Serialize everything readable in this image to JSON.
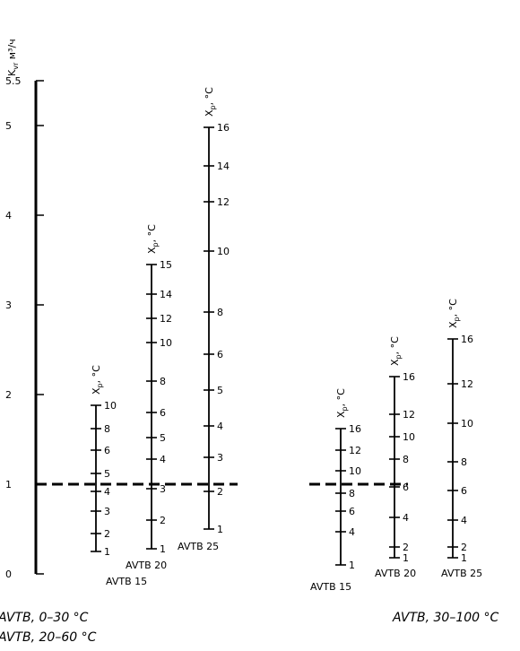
{
  "chart_data": {
    "type": "nomogram",
    "y_axis": {
      "label": "K",
      "label_sub": "vr",
      "label_unit": " м³/ч",
      "range": [
        0,
        5.5
      ],
      "ticks": [
        {
          "value": 0,
          "label": "0"
        },
        {
          "value": 1,
          "label": "1"
        },
        {
          "value": 2,
          "label": "2"
        },
        {
          "value": 3,
          "label": "3"
        },
        {
          "value": 4,
          "label": "4"
        },
        {
          "value": 5,
          "label": "5"
        },
        {
          "value": 5.5,
          "label": "5.5"
        }
      ]
    },
    "reference_line": {
      "value": 1,
      "style": "dashed"
    },
    "scale_header": {
      "main": "X",
      "sub": "p",
      "unit": ", °C"
    },
    "groups": [
      {
        "caption": [
          "AVTB, 0–30 °C",
          "AVTB, 20–60 °C"
        ],
        "scales": [
          {
            "name": "AVTB 15",
            "bottom": 0.25,
            "top": 1.88,
            "ticks": [
              {
                "k": 0.25,
                "label": "1"
              },
              {
                "k": 0.45,
                "label": "2"
              },
              {
                "k": 0.7,
                "label": "3"
              },
              {
                "k": 0.92,
                "label": "4"
              },
              {
                "k": 1.12,
                "label": "5"
              },
              {
                "k": 1.38,
                "label": "6"
              },
              {
                "k": 1.62,
                "label": "8"
              },
              {
                "k": 1.88,
                "label": "10"
              }
            ]
          },
          {
            "name": "AVTB 20",
            "bottom": 0.28,
            "top": 3.45,
            "ticks": [
              {
                "k": 0.28,
                "label": "1"
              },
              {
                "k": 0.6,
                "label": "2"
              },
              {
                "k": 0.95,
                "label": "3"
              },
              {
                "k": 1.28,
                "label": "4"
              },
              {
                "k": 1.52,
                "label": "5"
              },
              {
                "k": 1.8,
                "label": "6"
              },
              {
                "k": 2.15,
                "label": "8"
              },
              {
                "k": 2.58,
                "label": "10"
              },
              {
                "k": 2.85,
                "label": "12"
              },
              {
                "k": 3.12,
                "label": "14"
              },
              {
                "k": 3.45,
                "label": "15"
              }
            ]
          },
          {
            "name": "AVTB 25",
            "bottom": 0.5,
            "top": 4.98,
            "ticks": [
              {
                "k": 0.5,
                "label": "1"
              },
              {
                "k": 0.92,
                "label": "2"
              },
              {
                "k": 1.3,
                "label": "3"
              },
              {
                "k": 1.65,
                "label": "4"
              },
              {
                "k": 2.05,
                "label": "5"
              },
              {
                "k": 2.45,
                "label": "6"
              },
              {
                "k": 2.92,
                "label": "8"
              },
              {
                "k": 3.6,
                "label": "10"
              },
              {
                "k": 4.15,
                "label": "12"
              },
              {
                "k": 4.55,
                "label": "14"
              },
              {
                "k": 4.98,
                "label": "16"
              }
            ]
          }
        ]
      },
      {
        "caption": [
          "AVTB, 30–100 °C"
        ],
        "scales": [
          {
            "name": "AVTB 15",
            "bottom": 0.1,
            "top": 1.62,
            "ticks": [
              {
                "k": 0.1,
                "label": "1"
              },
              {
                "k": 0.47,
                "label": "4"
              },
              {
                "k": 0.7,
                "label": "6"
              },
              {
                "k": 0.9,
                "label": "8"
              },
              {
                "k": 1.15,
                "label": "10"
              },
              {
                "k": 1.38,
                "label": "12"
              },
              {
                "k": 1.62,
                "label": "16"
              }
            ]
          },
          {
            "name": "AVTB 20",
            "bottom": 0.18,
            "top": 2.2,
            "ticks": [
              {
                "k": 0.18,
                "label": "1"
              },
              {
                "k": 0.3,
                "label": "2"
              },
              {
                "k": 0.63,
                "label": "4"
              },
              {
                "k": 0.97,
                "label": "6"
              },
              {
                "k": 1.28,
                "label": "8"
              },
              {
                "k": 1.53,
                "label": "10"
              },
              {
                "k": 1.78,
                "label": "12"
              },
              {
                "k": 2.2,
                "label": "16"
              }
            ]
          },
          {
            "name": "AVTB 25",
            "bottom": 0.18,
            "top": 2.62,
            "ticks": [
              {
                "k": 0.18,
                "label": "1"
              },
              {
                "k": 0.3,
                "label": "2"
              },
              {
                "k": 0.6,
                "label": "4"
              },
              {
                "k": 0.93,
                "label": "6"
              },
              {
                "k": 1.25,
                "label": "8"
              },
              {
                "k": 1.68,
                "label": "10"
              },
              {
                "k": 2.12,
                "label": "12"
              },
              {
                "k": 2.62,
                "label": "16"
              }
            ]
          }
        ]
      }
    ]
  }
}
